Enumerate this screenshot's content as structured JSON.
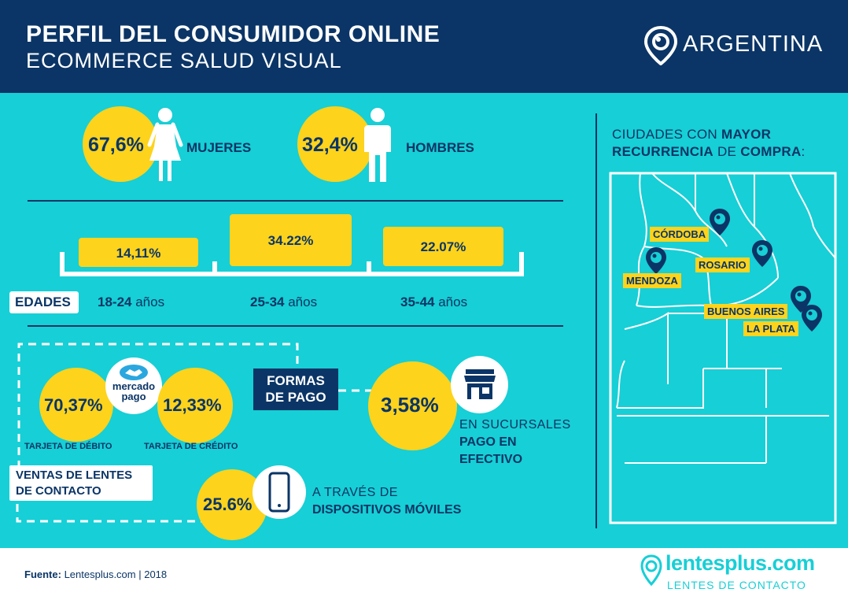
{
  "header": {
    "title": "PERFIL DEL CONSUMIDOR ONLINE",
    "subtitle": "ECOMMERCE SALUD VISUAL",
    "country": "ARGENTINA"
  },
  "gender": {
    "women_pct": "67,6%",
    "women_label": "MUJERES",
    "men_pct": "32,4%",
    "men_label": "HOMBRES"
  },
  "ages": {
    "label": "EDADES",
    "groups": [
      {
        "pct": "14,11%",
        "bold": "18-24",
        "unit": " años"
      },
      {
        "pct": "34.22%",
        "bold": "25-34",
        "unit": " años"
      },
      {
        "pct": "22.07%",
        "bold": "35-44",
        "unit": " años"
      }
    ]
  },
  "payment": {
    "title_line1": "FORMAS",
    "title_line2": "DE PAGO",
    "mercadopago_line1": "mercado",
    "mercadopago_line2": "pago",
    "debit_pct": "70,37%",
    "debit_label": "TARJETA DE DÉBITO",
    "credit_pct": "12,33%",
    "credit_label": "TARJETA DE CRÉDITO",
    "cash_pct": "3,58%",
    "cash_line1": "EN SUCURSALES",
    "cash_line2": "PAGO EN",
    "cash_line3": "EFECTIVO",
    "contact_line1": "VENTAS DE LENTES",
    "contact_line2": "DE CONTACTO",
    "mobile_pct": "25.6%",
    "mobile_line1": "A TRAVÉS DE",
    "mobile_line2": "DISPOSITIVOS MÓVILES"
  },
  "cities": {
    "heading_parts": [
      {
        "text": "CIUDADES CON ",
        "bold": false
      },
      {
        "text": "MAYOR",
        "bold": true
      },
      {
        "text": "RECURRENCIA",
        "bold": true
      },
      {
        "text": " DE ",
        "bold": false
      },
      {
        "text": "COMPRA",
        "bold": true
      },
      {
        "text": ":",
        "bold": false
      }
    ],
    "list": [
      "CÓRDOBA",
      "ROSARIO",
      "MENDOZA",
      "BUENOS AIRES",
      "LA PLATA"
    ]
  },
  "footer": {
    "source_bold": "Fuente:",
    "source_text": " Lentesplus.com | 2018",
    "brand": "lentesplus.com",
    "brand_sub": "LENTES DE CONTACTO"
  },
  "colors": {
    "navy": "#0b3566",
    "turquoise": "#17cfd6",
    "yellow": "#fdd31c",
    "white": "#ffffff"
  }
}
